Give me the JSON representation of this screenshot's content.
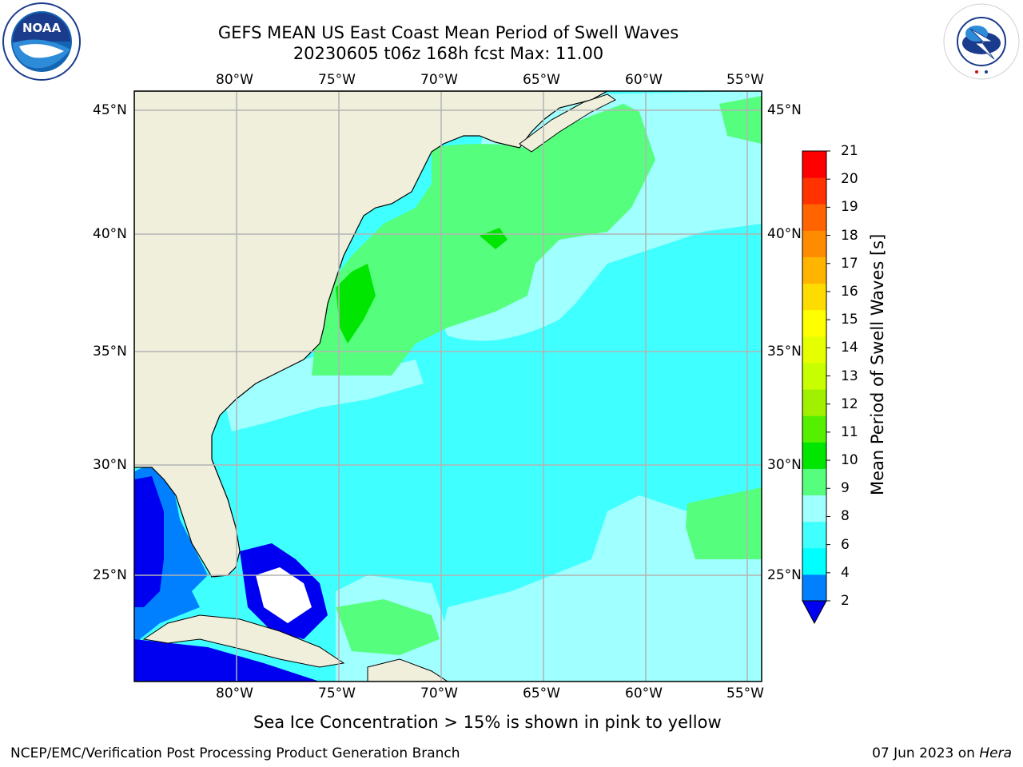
{
  "header": {
    "title_line1": "GEFS MEAN US East Coast Mean Period of Swell Waves",
    "title_line2": "20230605 t06z 168h fcst   Max: 11.00"
  },
  "logos": {
    "noaa_text": "NOAA",
    "nws_text": "NATIONAL WEATHER SERVICE"
  },
  "map": {
    "lon_labels": [
      "80°W",
      "75°W",
      "70°W",
      "65°W",
      "60°W",
      "55°W"
    ],
    "lat_labels": [
      "45°N",
      "40°N",
      "35°N",
      "30°N",
      "25°N"
    ],
    "colors": {
      "land": "#efefdc",
      "grid": "#b3b3b3",
      "coast": "#000000"
    }
  },
  "colorbar": {
    "title": "Mean Period of Swell Waves [s]",
    "ticks": [
      "21",
      "20",
      "19",
      "18",
      "17",
      "16",
      "15",
      "14",
      "13",
      "12",
      "11",
      "10",
      "9",
      "8",
      "6",
      "4",
      "2"
    ],
    "colors": [
      "#0000f0",
      "#0080ff",
      "#00ffff",
      "#40ffff",
      "#a0ffff",
      "#55ff7d",
      "#00e600",
      "#55f000",
      "#a0f000",
      "#c8ff00",
      "#e6ff00",
      "#ffff00",
      "#ffdc00",
      "#ffb400",
      "#ff8c00",
      "#ff6400",
      "#ff3200",
      "#ff0000"
    ]
  },
  "note": "Sea Ice Concentration > 15% is shown in pink to yellow",
  "footer": {
    "left": "NCEP/EMC/Verification Post Processing Product Generation Branch",
    "date": "07 Jun 2023 on",
    "machine": "Hera"
  }
}
